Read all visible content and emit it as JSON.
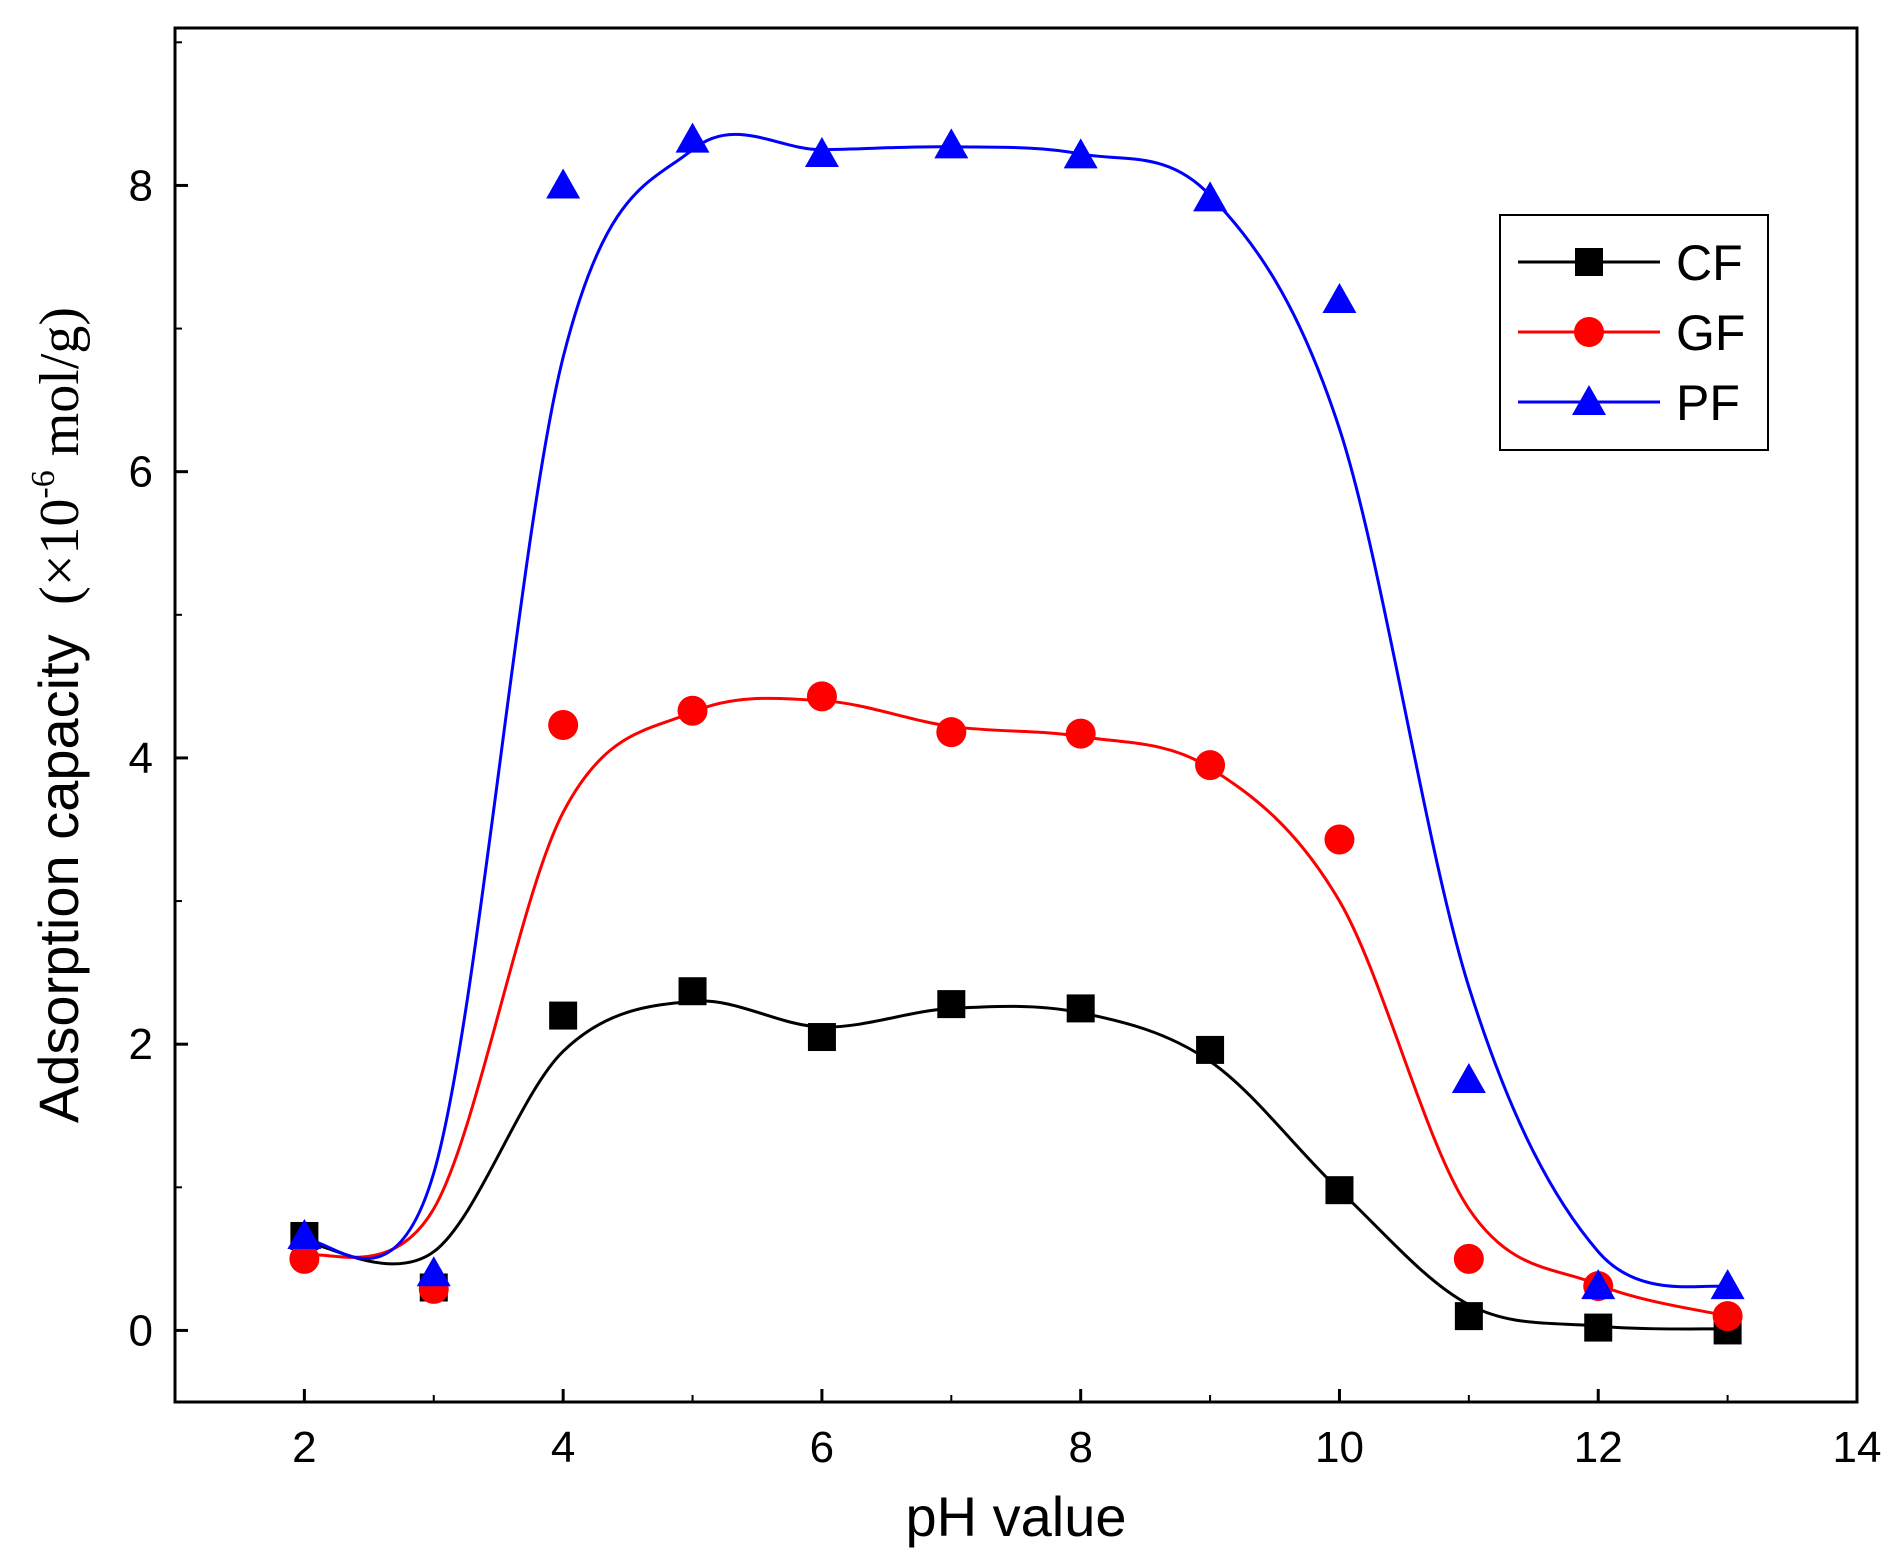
{
  "chart_data": {
    "type": "scatter",
    "title": "",
    "xlabel": "pH value",
    "ylabel": "Adsorption capacity",
    "ylabel_unit_open": "(×10",
    "ylabel_unit_exp": "-6",
    "ylabel_unit_close": " mol/g)",
    "xlim": [
      1,
      14
    ],
    "ylim": [
      -0.5,
      9.1
    ],
    "xticks": [
      2,
      4,
      6,
      8,
      10,
      12,
      14
    ],
    "yticks": [
      0,
      2,
      4,
      6,
      8
    ],
    "grid": false,
    "legend_position": "top-right",
    "x": [
      2,
      3,
      4,
      5,
      6,
      7,
      8,
      9,
      10,
      11,
      12,
      13
    ],
    "series": [
      {
        "name": "CF",
        "color": "#000000",
        "marker": "square",
        "values": [
          0.66,
          0.3,
          2.2,
          2.37,
          2.05,
          2.28,
          2.25,
          1.96,
          0.98,
          0.1,
          0.02,
          0.0
        ],
        "fit": [
          0.62,
          0.55,
          1.95,
          2.3,
          2.12,
          2.25,
          2.22,
          1.88,
          0.98,
          0.18,
          0.03,
          0.01
        ]
      },
      {
        "name": "GF",
        "color": "#ff0000",
        "marker": "circle",
        "values": [
          0.5,
          0.29,
          4.23,
          4.33,
          4.43,
          4.18,
          4.17,
          3.95,
          3.43,
          0.5,
          0.31,
          0.1
        ],
        "fit": [
          0.52,
          0.85,
          3.62,
          4.32,
          4.4,
          4.22,
          4.15,
          3.93,
          3.0,
          0.85,
          0.32,
          0.1
        ]
      },
      {
        "name": "PF",
        "color": "#0000ff",
        "marker": "triangle",
        "values": [
          0.66,
          0.4,
          8.0,
          8.32,
          8.22,
          8.28,
          8.21,
          7.91,
          7.2,
          1.75,
          0.31,
          0.31
        ],
        "fit": [
          0.62,
          1.1,
          6.8,
          8.25,
          8.25,
          8.27,
          8.22,
          7.93,
          6.3,
          2.4,
          0.55,
          0.3
        ]
      }
    ]
  }
}
